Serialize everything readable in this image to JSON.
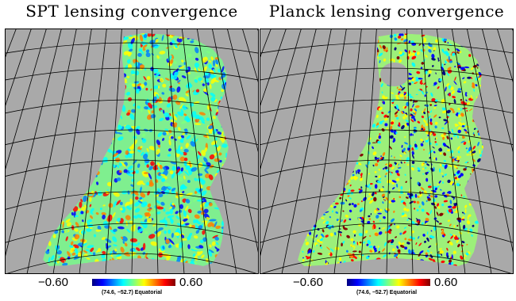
{
  "colors": {
    "background": "#a9a9a9",
    "grid": "#000000",
    "colormap": [
      "#00007f",
      "#0000ff",
      "#007fff",
      "#00ffff",
      "#7fff7f",
      "#ffff00",
      "#ff7f00",
      "#ff0000",
      "#7f0000"
    ]
  },
  "panels": [
    {
      "title": "SPT lensing convergence",
      "colorbar": {
        "min_label": "−0.60",
        "max_label": "0.60"
      },
      "coordinate_label": "(74.6, −52.7) Equatorial",
      "patch_style": "smooth"
    },
    {
      "title": "Planck lensing convergence",
      "colorbar": {
        "min_label": "−0.60",
        "max_label": "0.60"
      },
      "coordinate_label": "(74.6, −52.7) Equatorial",
      "patch_style": "noisy"
    }
  ]
}
